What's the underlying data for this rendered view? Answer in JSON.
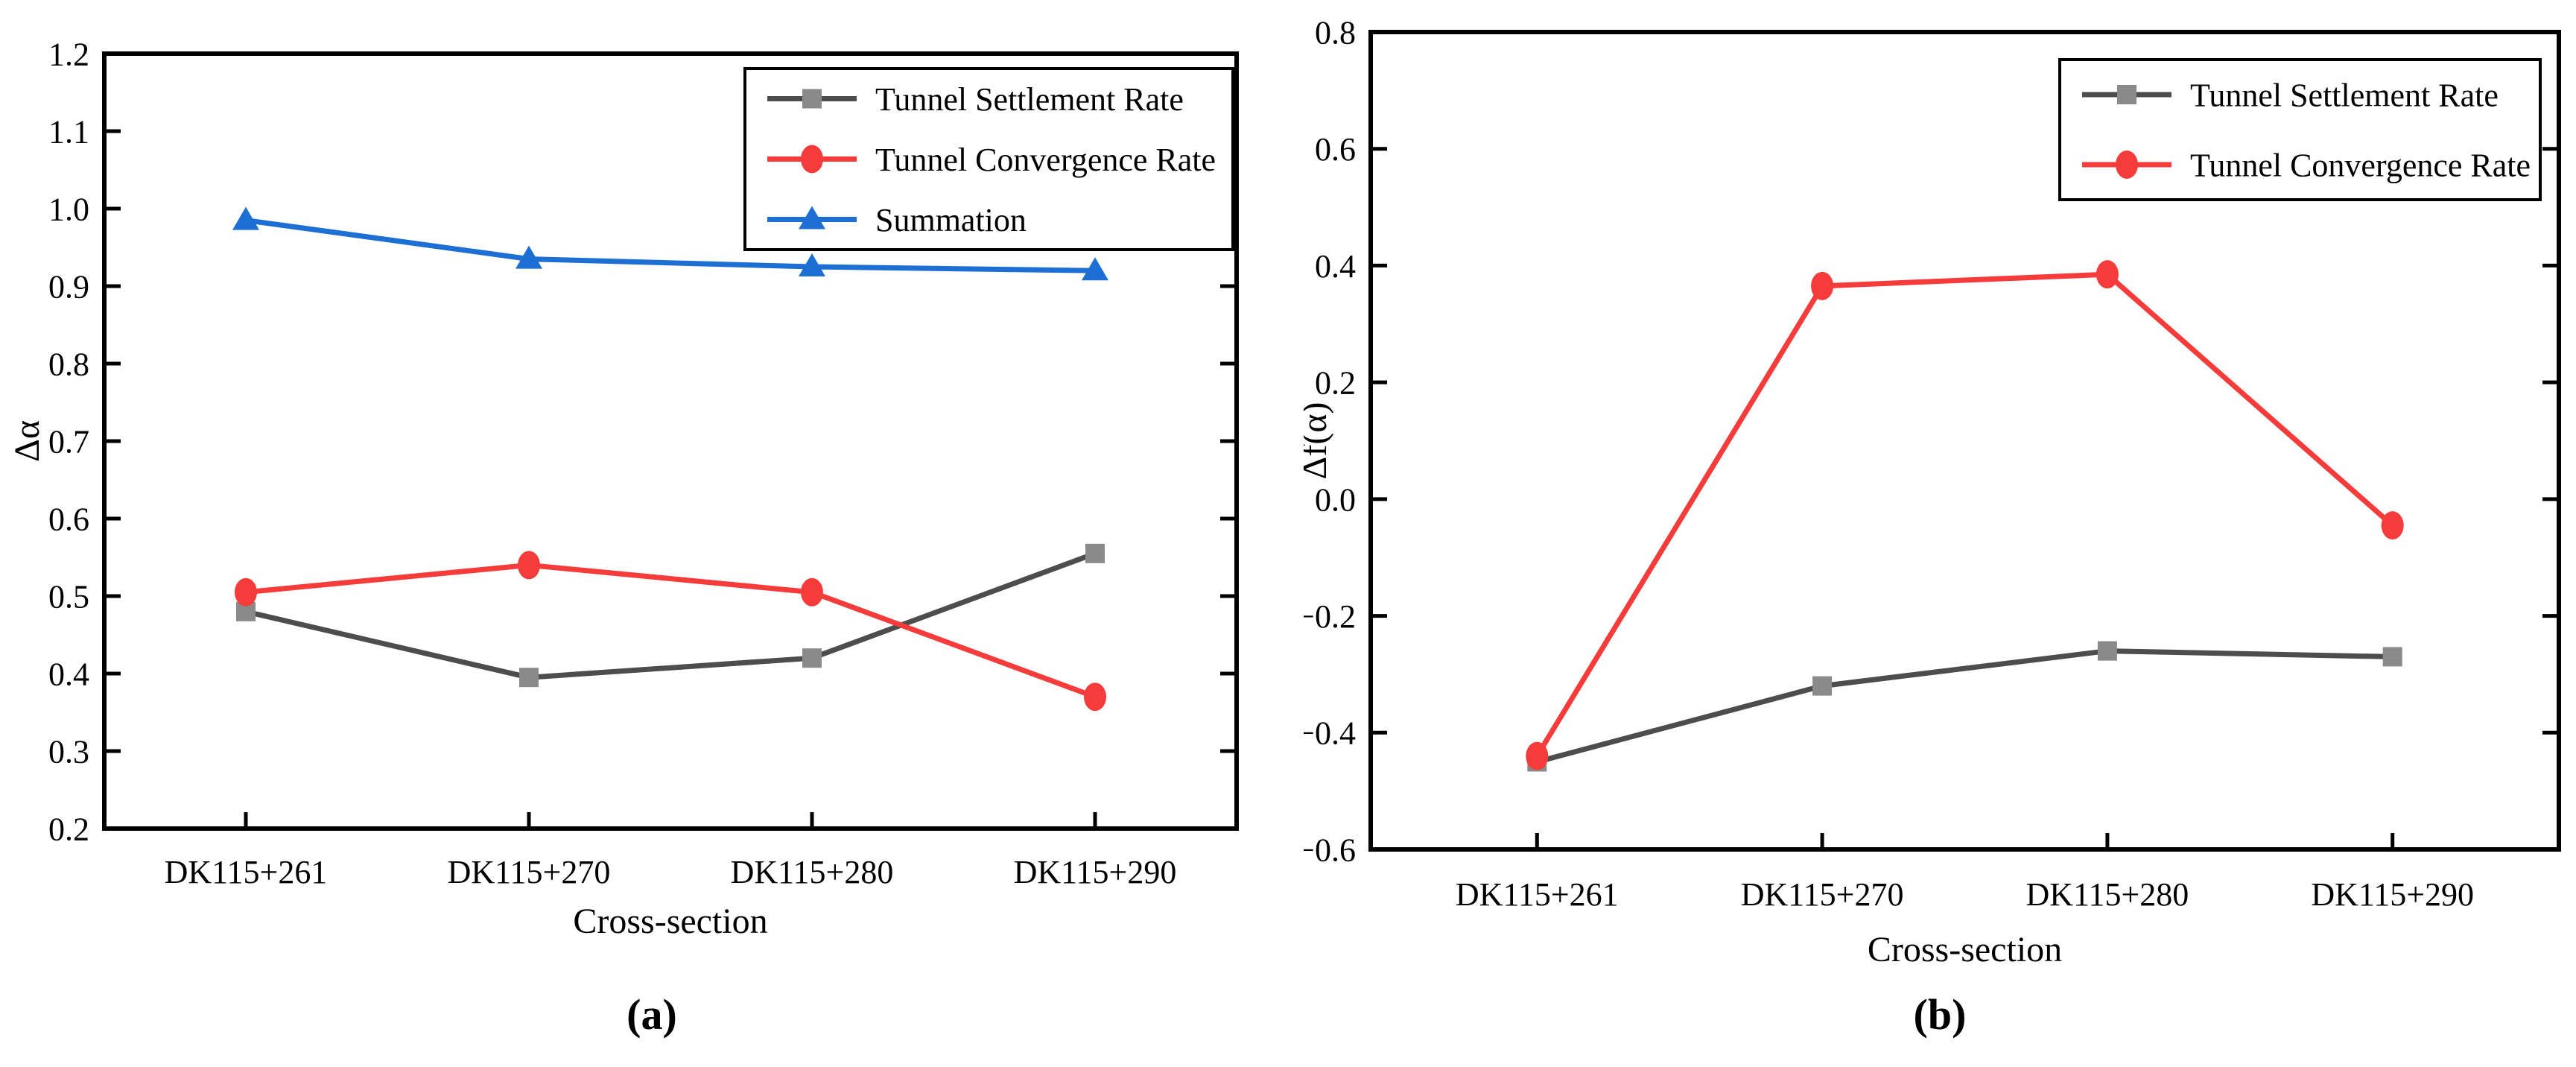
{
  "figure": {
    "background": "#ffffff",
    "text_color": "#000000",
    "axis_color": "#000000"
  },
  "chart_data": [
    {
      "id": "a",
      "type": "line",
      "caption": "(a)",
      "title": "",
      "xlabel": "Cross-section",
      "ylabel": "Δα",
      "categories": [
        "DK115+261",
        "DK115+270",
        "DK115+280",
        "DK115+290"
      ],
      "ylim": [
        0.2,
        1.2
      ],
      "ytick_step": 0.1,
      "ytick_decimals": 1,
      "grid": false,
      "legend_position": "top-right",
      "series": [
        {
          "name": "Tunnel Settlement Rate",
          "marker": "square",
          "line_color": "#4d4d4d",
          "marker_color": "#8a8a8a",
          "values": [
            0.48,
            0.395,
            0.42,
            0.555
          ]
        },
        {
          "name": "Tunnel Convergence Rate",
          "marker": "circle",
          "line_color": "#f63b3b",
          "marker_color": "#f63b3b",
          "values": [
            0.505,
            0.54,
            0.505,
            0.37
          ]
        },
        {
          "name": "Summation",
          "marker": "triangle",
          "line_color": "#1e6fd4",
          "marker_color": "#1e6fd4",
          "values": [
            0.985,
            0.935,
            0.925,
            0.92
          ]
        }
      ]
    },
    {
      "id": "b",
      "type": "line",
      "caption": "(b)",
      "title": "",
      "xlabel": "Cross-section",
      "ylabel": "Δf(α)",
      "categories": [
        "DK115+261",
        "DK115+270",
        "DK115+280",
        "DK115+290"
      ],
      "ylim": [
        -0.6,
        0.8
      ],
      "ytick_step": 0.2,
      "ytick_decimals": 1,
      "grid": false,
      "legend_position": "top-right",
      "series": [
        {
          "name": "Tunnel Settlement Rate",
          "marker": "square",
          "line_color": "#4d4d4d",
          "marker_color": "#8a8a8a",
          "values": [
            -0.45,
            -0.32,
            -0.26,
            -0.27
          ]
        },
        {
          "name": "Tunnel Convergence Rate",
          "marker": "circle",
          "line_color": "#f63b3b",
          "marker_color": "#f63b3b",
          "values": [
            -0.44,
            0.365,
            0.385,
            -0.045
          ]
        }
      ]
    }
  ]
}
